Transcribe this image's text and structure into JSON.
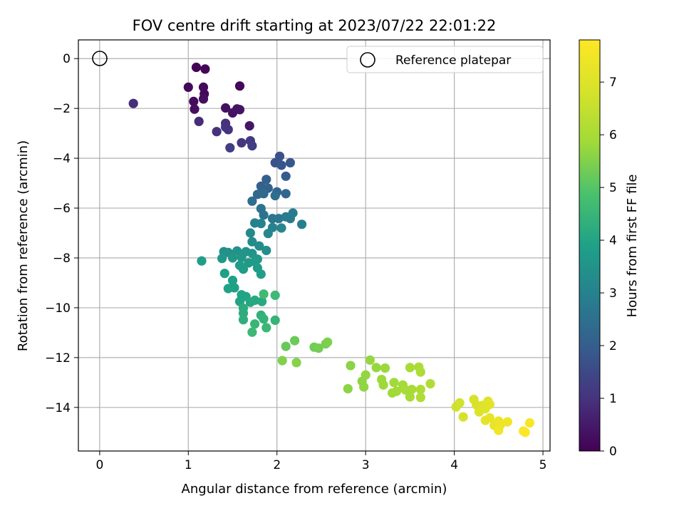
{
  "chart_data": {
    "type": "scatter",
    "title": "FOV centre drift starting at 2023/07/22 22:01:22",
    "xlabel": "Angular distance from reference (arcmin)",
    "ylabel": "Rotation from reference (arcmin)",
    "colorbar_label": "Hours from first FF file",
    "xlim": [
      -0.24,
      5.08
    ],
    "ylim": [
      -15.75,
      0.75
    ],
    "clim": [
      0,
      7.8
    ],
    "colormap": "viridis",
    "grid": true,
    "legend_position": "upper-right",
    "x_ticks": [
      0,
      1,
      2,
      3,
      4,
      5
    ],
    "x_tick_labels": [
      "0",
      "1",
      "2",
      "3",
      "4",
      "5"
    ],
    "y_ticks": [
      0,
      -2,
      -4,
      -6,
      -8,
      -10,
      -12,
      -14
    ],
    "y_tick_labels": [
      "0",
      "−2",
      "−4",
      "−6",
      "−8",
      "−10",
      "−12",
      "−14"
    ],
    "colorbar_ticks": [
      0,
      1,
      2,
      3,
      4,
      5,
      6,
      7
    ],
    "colorbar_tick_labels": [
      "0",
      "1",
      "2",
      "3",
      "4",
      "5",
      "6",
      "7"
    ],
    "reference": {
      "label": "Reference platepar",
      "x": 0,
      "y": 0
    },
    "points": [
      [
        1.09,
        -0.35,
        0.05
      ],
      [
        1.19,
        -0.42,
        0.08
      ],
      [
        1.58,
        -1.1,
        0.12
      ],
      [
        1.0,
        -1.15,
        0.15
      ],
      [
        1.17,
        -1.15,
        0.18
      ],
      [
        1.18,
        -1.42,
        0.2
      ],
      [
        1.06,
        -1.72,
        0.22
      ],
      [
        1.17,
        -1.62,
        0.25
      ],
      [
        1.07,
        -2.03,
        0.28
      ],
      [
        1.42,
        -1.98,
        0.3
      ],
      [
        1.55,
        -2.02,
        0.33
      ],
      [
        1.5,
        -2.18,
        0.36
      ],
      [
        1.58,
        -2.05,
        0.38
      ],
      [
        1.69,
        -2.7,
        0.45
      ],
      [
        0.38,
        -1.8,
        0.9
      ],
      [
        1.12,
        -2.52,
        0.85
      ],
      [
        1.32,
        -2.93,
        0.95
      ],
      [
        1.42,
        -2.6,
        0.98
      ],
      [
        1.45,
        -2.85,
        1.02
      ],
      [
        1.42,
        -2.75,
        1.05
      ],
      [
        1.6,
        -3.38,
        1.1
      ],
      [
        1.7,
        -3.3,
        1.15
      ],
      [
        1.72,
        -3.5,
        1.2
      ],
      [
        1.47,
        -3.58,
        1.25
      ],
      [
        2.03,
        -3.92,
        1.7
      ],
      [
        1.98,
        -4.18,
        1.75
      ],
      [
        2.05,
        -4.28,
        1.8
      ],
      [
        2.15,
        -4.18,
        1.85
      ],
      [
        2.1,
        -4.72,
        1.95
      ],
      [
        1.88,
        -4.85,
        2.05
      ],
      [
        1.82,
        -5.12,
        2.1
      ],
      [
        1.9,
        -5.2,
        2.15
      ],
      [
        2.0,
        -5.35,
        2.2
      ],
      [
        2.1,
        -5.42,
        2.25
      ],
      [
        1.78,
        -5.45,
        2.3
      ],
      [
        1.85,
        -5.42,
        2.35
      ],
      [
        1.72,
        -5.72,
        2.4
      ],
      [
        1.98,
        -5.5,
        2.45
      ],
      [
        1.82,
        -6.02,
        2.55
      ],
      [
        1.85,
        -6.28,
        2.6
      ],
      [
        1.95,
        -6.42,
        2.65
      ],
      [
        2.02,
        -6.42,
        2.7
      ],
      [
        2.15,
        -6.42,
        2.75
      ],
      [
        2.1,
        -6.35,
        2.8
      ],
      [
        2.18,
        -6.2,
        2.85
      ],
      [
        2.28,
        -6.65,
        2.9
      ],
      [
        1.75,
        -6.6,
        2.95
      ],
      [
        1.82,
        -6.62,
        3.0
      ],
      [
        1.95,
        -6.78,
        3.05
      ],
      [
        2.05,
        -6.8,
        3.1
      ],
      [
        1.9,
        -7.02,
        3.15
      ],
      [
        1.7,
        -7.0,
        3.2
      ],
      [
        1.72,
        -7.35,
        3.25
      ],
      [
        1.8,
        -7.52,
        3.3
      ],
      [
        1.88,
        -7.7,
        3.35
      ],
      [
        1.4,
        -7.75,
        3.4
      ],
      [
        1.45,
        -7.78,
        3.45
      ],
      [
        1.55,
        -7.72,
        3.5
      ],
      [
        1.65,
        -7.75,
        3.52
      ],
      [
        1.72,
        -7.82,
        3.55
      ],
      [
        1.6,
        -7.98,
        3.58
      ],
      [
        1.5,
        -8.0,
        3.6
      ],
      [
        1.38,
        -8.02,
        3.62
      ],
      [
        1.78,
        -8.05,
        3.65
      ],
      [
        1.68,
        -8.2,
        3.68
      ],
      [
        1.75,
        -8.15,
        3.7
      ],
      [
        1.58,
        -8.3,
        3.72
      ],
      [
        1.62,
        -8.45,
        3.75
      ],
      [
        1.78,
        -8.4,
        3.78
      ],
      [
        1.82,
        -8.65,
        3.8
      ],
      [
        1.15,
        -8.12,
        3.82
      ],
      [
        1.41,
        -8.62,
        3.85
      ],
      [
        1.5,
        -8.9,
        3.88
      ],
      [
        1.52,
        -9.2,
        3.9
      ],
      [
        1.45,
        -9.23,
        3.92
      ],
      [
        1.6,
        -9.48,
        3.95
      ],
      [
        1.65,
        -9.55,
        3.98
      ],
      [
        1.58,
        -9.75,
        4.0
      ],
      [
        1.7,
        -9.78,
        4.05
      ],
      [
        1.75,
        -9.7,
        4.1
      ],
      [
        1.83,
        -9.75,
        4.15
      ],
      [
        1.62,
        -10.02,
        4.2
      ],
      [
        1.62,
        -10.22,
        4.25
      ],
      [
        1.62,
        -10.48,
        4.3
      ],
      [
        1.82,
        -10.3,
        4.35
      ],
      [
        1.85,
        -10.45,
        4.4
      ],
      [
        1.98,
        -10.5,
        4.45
      ],
      [
        1.75,
        -10.65,
        4.5
      ],
      [
        1.88,
        -10.8,
        4.55
      ],
      [
        1.72,
        -10.98,
        4.6
      ],
      [
        1.98,
        -9.5,
        4.62
      ],
      [
        1.85,
        -9.45,
        4.65
      ],
      [
        2.1,
        -11.55,
        5.2
      ],
      [
        2.2,
        -11.32,
        5.25
      ],
      [
        2.42,
        -11.58,
        5.3
      ],
      [
        2.47,
        -11.62,
        5.35
      ],
      [
        2.55,
        -11.45,
        5.4
      ],
      [
        2.57,
        -11.38,
        5.45
      ],
      [
        2.06,
        -12.12,
        5.5
      ],
      [
        2.22,
        -12.2,
        5.55
      ],
      [
        2.83,
        -12.32,
        5.6
      ],
      [
        2.8,
        -13.25,
        5.62
      ],
      [
        2.96,
        -12.95,
        5.65
      ],
      [
        2.98,
        -13.18,
        5.68
      ],
      [
        3.0,
        -12.7,
        5.7
      ],
      [
        3.05,
        -12.1,
        5.72
      ],
      [
        3.12,
        -12.4,
        5.75
      ],
      [
        3.22,
        -12.42,
        5.78
      ],
      [
        3.18,
        -12.88,
        5.8
      ],
      [
        3.2,
        -13.1,
        5.82
      ],
      [
        3.3,
        -13.42,
        5.85
      ],
      [
        3.32,
        -13.0,
        5.88
      ],
      [
        3.35,
        -13.35,
        5.9
      ],
      [
        3.42,
        -13.1,
        5.92
      ],
      [
        3.45,
        -13.3,
        5.95
      ],
      [
        3.5,
        -13.58,
        5.97
      ],
      [
        3.52,
        -13.28,
        6.0
      ],
      [
        3.5,
        -12.4,
        6.02
      ],
      [
        3.6,
        -12.38,
        6.05
      ],
      [
        3.62,
        -12.58,
        6.08
      ],
      [
        3.62,
        -13.28,
        6.1
      ],
      [
        3.62,
        -13.6,
        6.12
      ],
      [
        3.73,
        -13.05,
        6.15
      ],
      [
        4.02,
        -13.98,
        6.7
      ],
      [
        4.06,
        -13.82,
        6.75
      ],
      [
        4.1,
        -14.38,
        6.8
      ],
      [
        4.22,
        -13.68,
        6.85
      ],
      [
        4.25,
        -13.9,
        6.9
      ],
      [
        4.28,
        -14.18,
        6.95
      ],
      [
        4.32,
        -13.92,
        7.0
      ],
      [
        4.35,
        -14.05,
        7.05
      ],
      [
        4.38,
        -13.75,
        7.1
      ],
      [
        4.4,
        -13.88,
        7.15
      ],
      [
        4.35,
        -14.52,
        7.2
      ],
      [
        4.4,
        -14.42,
        7.25
      ],
      [
        4.45,
        -14.72,
        7.3
      ],
      [
        4.5,
        -14.55,
        7.35
      ],
      [
        4.52,
        -14.7,
        7.4
      ],
      [
        4.6,
        -14.58,
        7.45
      ],
      [
        4.5,
        -14.92,
        7.5
      ],
      [
        4.78,
        -14.95,
        7.7
      ],
      [
        4.8,
        -15.0,
        7.75
      ],
      [
        4.85,
        -14.62,
        7.6
      ]
    ]
  }
}
